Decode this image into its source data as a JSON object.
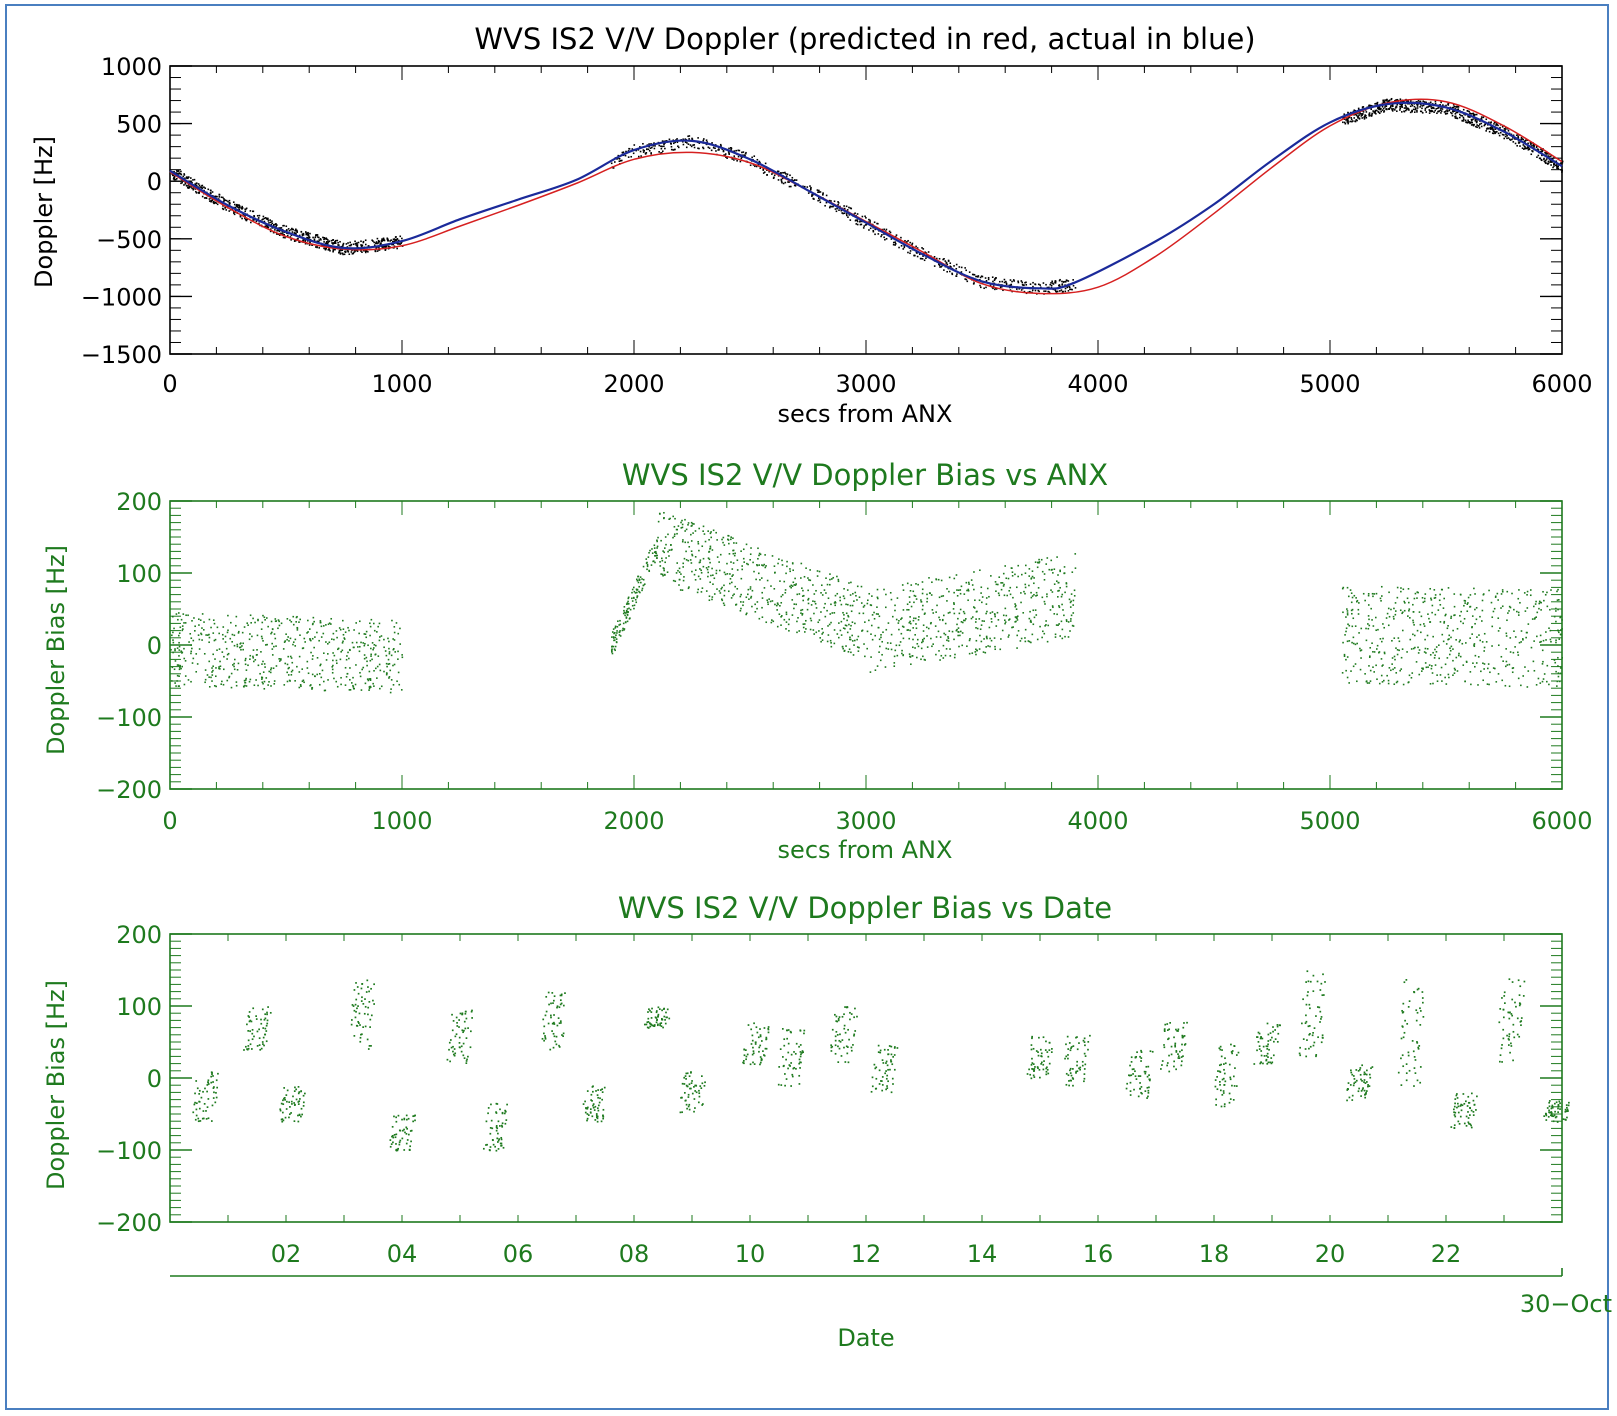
{
  "colors": {
    "black": "#000000",
    "green": "#1e7a1e",
    "red": "#d62020",
    "blue": "#1b2a9a",
    "frame": "#4a7fc0"
  },
  "chart_data": [
    {
      "type": "line",
      "title": "WVS IS2 V/V Doppler (predicted in red, actual in blue)",
      "xlabel": "secs from ANX",
      "ylabel": "Doppler [Hz]",
      "xlim": [
        0,
        6000
      ],
      "ylim": [
        -1500,
        1000
      ],
      "xticks": [
        "0",
        "1000",
        "2000",
        "3000",
        "4000",
        "5000",
        "6000"
      ],
      "yticks": [
        "1000",
        "500",
        "0",
        "−500",
        "−1000",
        "−1500"
      ],
      "series": [
        {
          "color": "red",
          "x": [
            0,
            250,
            500,
            750,
            1000,
            1250,
            1500,
            1750,
            2000,
            2250,
            2500,
            2750,
            3000,
            3250,
            3500,
            3750,
            4000,
            4250,
            4500,
            4750,
            5000,
            5250,
            5500,
            5750,
            6000
          ],
          "y": [
            80,
            -230,
            -480,
            -590,
            -560,
            -390,
            -210,
            -20,
            190,
            250,
            160,
            -80,
            -350,
            -620,
            -890,
            -975,
            -920,
            -650,
            -280,
            120,
            480,
            680,
            690,
            480,
            170
          ]
        },
        {
          "color": "blue",
          "x": [
            0,
            250,
            500,
            750,
            1000,
            1250,
            1500,
            1750,
            2000,
            2250,
            2500,
            2750,
            3000,
            3250,
            3500,
            3750,
            3900,
            4250,
            4500,
            4750,
            5000,
            5250,
            5500,
            5750,
            6000
          ],
          "y": [
            90,
            -210,
            -440,
            -580,
            -520,
            -330,
            -160,
            10,
            270,
            350,
            190,
            -80,
            -360,
            -640,
            -870,
            -930,
            -880,
            -520,
            -200,
            180,
            510,
            670,
            640,
            430,
            130
          ]
        }
      ],
      "scatter_segments": [
        [
          0,
          1000
        ],
        [
          1900,
          3900
        ],
        [
          5050,
          6000
        ]
      ]
    },
    {
      "type": "scatter",
      "title": "WVS IS2 V/V Doppler Bias vs ANX",
      "xlabel": "secs from ANX",
      "ylabel": "Doppler Bias [Hz]",
      "xlim": [
        0,
        6000
      ],
      "ylim": [
        -200,
        200
      ],
      "xticks": [
        "0",
        "1000",
        "2000",
        "3000",
        "4000",
        "5000",
        "6000"
      ],
      "yticks": [
        "200",
        "100",
        "0",
        "−100",
        "−200"
      ],
      "clusters": [
        {
          "x": [
            0,
            1000
          ],
          "y_center": [
            -5,
            -15
          ],
          "spread": 60
        },
        {
          "x": [
            1900,
            2100
          ],
          "y_center": [
            0,
            140
          ],
          "spread": 20
        },
        {
          "x": [
            2100,
            3000
          ],
          "y_center": [
            140,
            30
          ],
          "spread": 60
        },
        {
          "x": [
            3000,
            3900
          ],
          "y_center": [
            20,
            70
          ],
          "spread": 70
        },
        {
          "x": [
            5050,
            6000
          ],
          "y_center": [
            15,
            10
          ],
          "spread": 80
        }
      ]
    },
    {
      "type": "scatter",
      "title": "WVS IS2 V/V Doppler Bias vs Date",
      "xlabel": "Date",
      "ylabel": "Doppler Bias [Hz]",
      "date_label": "30−Oct",
      "xlim": [
        0,
        24
      ],
      "ylim": [
        -200,
        200
      ],
      "xticks": [
        "02",
        "04",
        "06",
        "08",
        "10",
        "12",
        "14",
        "16",
        "18",
        "20",
        "22"
      ],
      "yticks": [
        "200",
        "100",
        "0",
        "−100",
        "−200"
      ],
      "bursts": [
        {
          "x": 0.6,
          "y": [
            -60,
            10
          ]
        },
        {
          "x": 1.5,
          "y": [
            40,
            100
          ]
        },
        {
          "x": 2.1,
          "y": [
            -60,
            -10
          ]
        },
        {
          "x": 3.3,
          "y": [
            40,
            140
          ]
        },
        {
          "x": 4.0,
          "y": [
            -100,
            -50
          ]
        },
        {
          "x": 5.0,
          "y": [
            20,
            95
          ]
        },
        {
          "x": 5.6,
          "y": [
            -100,
            -30
          ]
        },
        {
          "x": 6.6,
          "y": [
            40,
            120
          ]
        },
        {
          "x": 7.3,
          "y": [
            -60,
            -10
          ]
        },
        {
          "x": 8.4,
          "y": [
            70,
            100
          ]
        },
        {
          "x": 9.0,
          "y": [
            -50,
            10
          ]
        },
        {
          "x": 10.1,
          "y": [
            20,
            80
          ]
        },
        {
          "x": 10.7,
          "y": [
            -10,
            70
          ]
        },
        {
          "x": 11.6,
          "y": [
            20,
            100
          ]
        },
        {
          "x": 12.3,
          "y": [
            -20,
            50
          ]
        },
        {
          "x": 15.0,
          "y": [
            0,
            60
          ]
        },
        {
          "x": 15.6,
          "y": [
            -10,
            60
          ]
        },
        {
          "x": 16.7,
          "y": [
            -30,
            40
          ]
        },
        {
          "x": 17.3,
          "y": [
            10,
            80
          ]
        },
        {
          "x": 18.2,
          "y": [
            -40,
            50
          ]
        },
        {
          "x": 18.9,
          "y": [
            20,
            80
          ]
        },
        {
          "x": 19.7,
          "y": [
            30,
            150
          ]
        },
        {
          "x": 20.5,
          "y": [
            -30,
            20
          ]
        },
        {
          "x": 21.4,
          "y": [
            -10,
            140
          ]
        },
        {
          "x": 22.3,
          "y": [
            -70,
            -20
          ]
        },
        {
          "x": 23.1,
          "y": [
            20,
            140
          ]
        },
        {
          "x": 23.9,
          "y": [
            -60,
            -30
          ]
        }
      ]
    }
  ]
}
